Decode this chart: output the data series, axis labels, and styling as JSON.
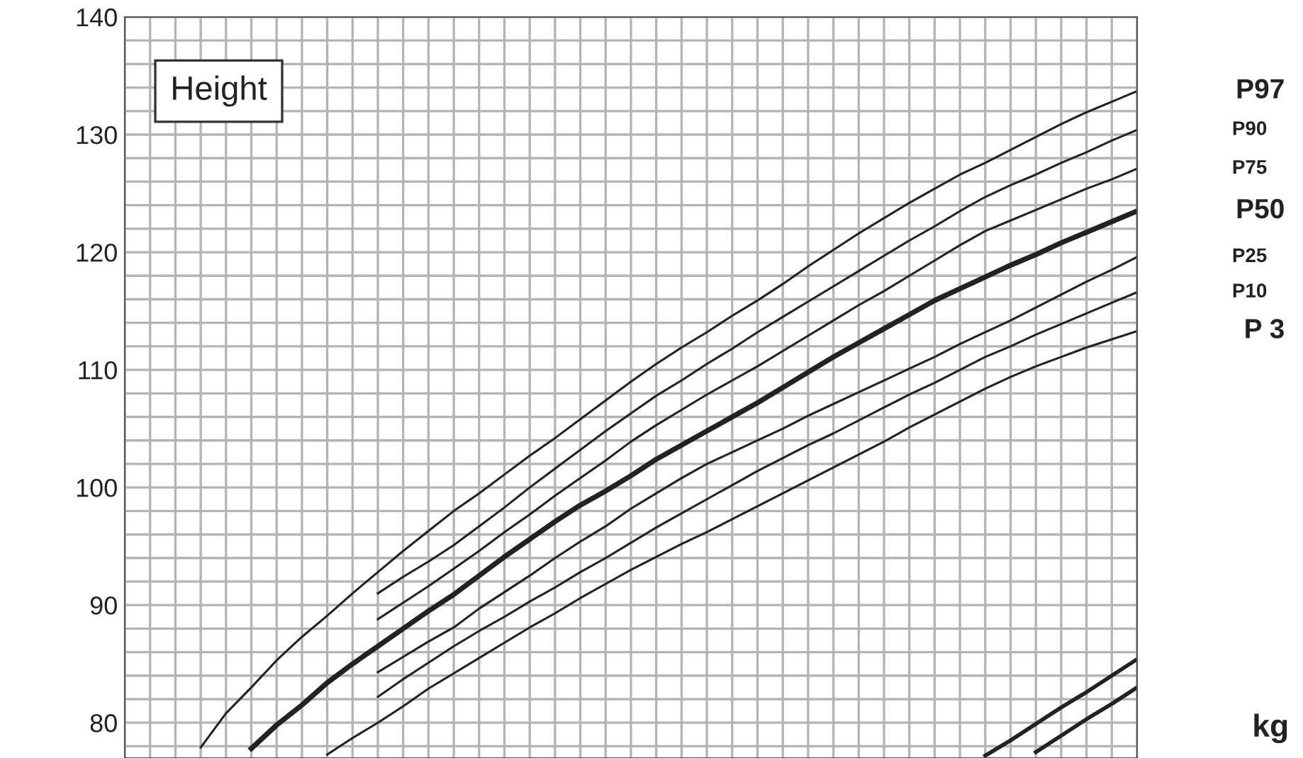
{
  "chart_data": {
    "type": "line",
    "title": "Height",
    "categories": [
      null,
      null,
      null,
      null,
      null,
      null,
      null,
      null,
      null,
      null,
      null,
      null,
      null,
      null,
      null,
      null,
      null,
      null,
      null,
      null,
      null,
      null,
      null,
      null,
      null,
      null,
      null,
      null,
      null,
      null,
      null,
      null,
      null,
      null,
      null,
      null,
      null,
      null,
      null,
      null,
      null
    ],
    "series": [
      {
        "name": "P97",
        "color": "#222222",
        "values": [
          null,
          null,
          null,
          77.9,
          80.8,
          83.0,
          85.3,
          87.3,
          89.1,
          91.0,
          92.8,
          94.6,
          96.3,
          98.0,
          99.5,
          101.1,
          102.7,
          104.2,
          105.8,
          107.4,
          109.0,
          110.5,
          111.9,
          113.2,
          114.6,
          115.9,
          117.3,
          118.8,
          120.2,
          121.6,
          122.9,
          124.2,
          125.4,
          126.6,
          127.6,
          128.7,
          129.8,
          130.9,
          131.9,
          132.8,
          133.7
        ]
      },
      {
        "name": "P90",
        "color": "#222222",
        "values": [
          null,
          null,
          null,
          null,
          null,
          null,
          null,
          null,
          null,
          null,
          91.0,
          92.4,
          93.7,
          95.1,
          96.7,
          98.3,
          100.0,
          101.6,
          103.2,
          104.8,
          106.3,
          107.8,
          109.1,
          110.5,
          111.8,
          113.2,
          114.5,
          115.8,
          117.1,
          118.4,
          119.7,
          121.0,
          122.2,
          123.5,
          124.7,
          125.7,
          126.6,
          127.6,
          128.5,
          129.5,
          130.4
        ]
      },
      {
        "name": "P75",
        "color": "#222222",
        "values": [
          null,
          null,
          null,
          null,
          null,
          null,
          null,
          null,
          null,
          null,
          88.8,
          90.2,
          91.6,
          93.1,
          94.6,
          96.2,
          97.7,
          99.3,
          100.8,
          102.3,
          103.9,
          105.3,
          106.6,
          107.9,
          109.1,
          110.3,
          111.6,
          112.9,
          114.2,
          115.5,
          116.7,
          118.0,
          119.3,
          120.6,
          121.8,
          122.7,
          123.6,
          124.5,
          125.4,
          126.2,
          127.1
        ]
      },
      {
        "name": "P50",
        "color": "#222222",
        "values": [
          null,
          null,
          null,
          null,
          null,
          77.8,
          79.8,
          81.5,
          83.4,
          85.0,
          86.5,
          88.0,
          89.5,
          90.9,
          92.5,
          94.1,
          95.6,
          97.1,
          98.5,
          99.7,
          101.0,
          102.4,
          103.6,
          104.8,
          106.0,
          107.2,
          108.5,
          109.8,
          111.1,
          112.3,
          113.5,
          114.7,
          115.9,
          116.9,
          117.9,
          118.9,
          119.8,
          120.8,
          121.7,
          122.6,
          123.5
        ]
      },
      {
        "name": "P25",
        "color": "#222222",
        "values": [
          null,
          null,
          null,
          null,
          null,
          null,
          null,
          null,
          null,
          null,
          84.3,
          85.6,
          86.9,
          88.1,
          89.7,
          91.1,
          92.5,
          94.0,
          95.4,
          96.7,
          98.2,
          99.5,
          100.8,
          102.0,
          103.0,
          104.0,
          105.0,
          106.1,
          107.1,
          108.1,
          109.1,
          110.1,
          111.1,
          112.2,
          113.2,
          114.2,
          115.3,
          116.4,
          117.5,
          118.5,
          119.6
        ]
      },
      {
        "name": "P10",
        "color": "#222222",
        "values": [
          null,
          null,
          null,
          null,
          null,
          null,
          null,
          null,
          null,
          null,
          82.2,
          83.7,
          85.1,
          86.5,
          87.8,
          89.0,
          90.3,
          91.5,
          92.8,
          94.0,
          95.3,
          96.6,
          97.8,
          99.0,
          100.2,
          101.4,
          102.5,
          103.6,
          104.6,
          105.7,
          106.8,
          107.9,
          108.9,
          110.0,
          111.1,
          112.0,
          113.0,
          113.9,
          114.8,
          115.7,
          116.6
        ]
      },
      {
        "name": "P 3",
        "color": "#222222",
        "values": [
          null,
          null,
          null,
          null,
          null,
          null,
          null,
          null,
          77.3,
          78.7,
          80.0,
          81.4,
          82.9,
          84.2,
          85.5,
          86.8,
          88.1,
          89.3,
          90.6,
          91.8,
          93.0,
          94.1,
          95.2,
          96.2,
          97.3,
          98.4,
          99.5,
          100.6,
          101.7,
          102.8,
          103.9,
          105.1,
          106.2,
          107.3,
          108.4,
          109.4,
          110.3,
          111.1,
          111.9,
          112.6,
          113.3
        ]
      },
      {
        "color": "#222222",
        "values": [
          null,
          null,
          null,
          null,
          null,
          null,
          null,
          null,
          null,
          null,
          null,
          null,
          null,
          null,
          null,
          null,
          null,
          null,
          null,
          null,
          null,
          null,
          null,
          null,
          null,
          null,
          null,
          null,
          null,
          null,
          null,
          null,
          null,
          null,
          77.2,
          78.5,
          79.9,
          81.3,
          82.6,
          84.0,
          85.4
        ]
      },
      {
        "color": "#222222",
        "values": [
          null,
          null,
          null,
          null,
          null,
          null,
          null,
          null,
          null,
          null,
          null,
          null,
          null,
          null,
          null,
          null,
          null,
          null,
          null,
          null,
          null,
          null,
          null,
          null,
          null,
          null,
          null,
          null,
          null,
          null,
          null,
          null,
          null,
          null,
          null,
          null,
          77.5,
          78.9,
          80.3,
          81.6,
          83.0
        ]
      }
    ],
    "annotations": [
      "kg"
    ],
    "ylim": [
      77,
      140
    ],
    "yticks": [
      {
        "value": 78,
        "label": null
      },
      80,
      {
        "value": 82,
        "label": null
      },
      {
        "value": 84,
        "label": null
      },
      {
        "value": 86,
        "label": null
      },
      {
        "value": 88,
        "label": null
      },
      90,
      {
        "value": 92,
        "label": null
      },
      {
        "value": 94,
        "label": null
      },
      {
        "value": 96,
        "label": null
      },
      {
        "value": 98,
        "label": null
      },
      100,
      {
        "value": 102,
        "label": null
      },
      {
        "value": 104,
        "label": null
      },
      {
        "value": 106,
        "label": null
      },
      {
        "value": 108,
        "label": null
      },
      110,
      {
        "value": 112,
        "label": null
      },
      {
        "value": 114,
        "label": null
      },
      {
        "value": 116,
        "label": null
      },
      {
        "value": 118,
        "label": null
      },
      120,
      {
        "value": 122,
        "label": null
      },
      {
        "value": 124,
        "label": null
      },
      {
        "value": 126,
        "label": null
      },
      {
        "value": 128,
        "label": null
      },
      130,
      {
        "value": 132,
        "label": null
      },
      {
        "value": 134,
        "label": null
      },
      {
        "value": 136,
        "label": null
      },
      {
        "value": 138,
        "label": null
      },
      140
    ],
    "grid": true,
    "legend": false,
    "marker": "none",
    "line_style": "solid"
  }
}
